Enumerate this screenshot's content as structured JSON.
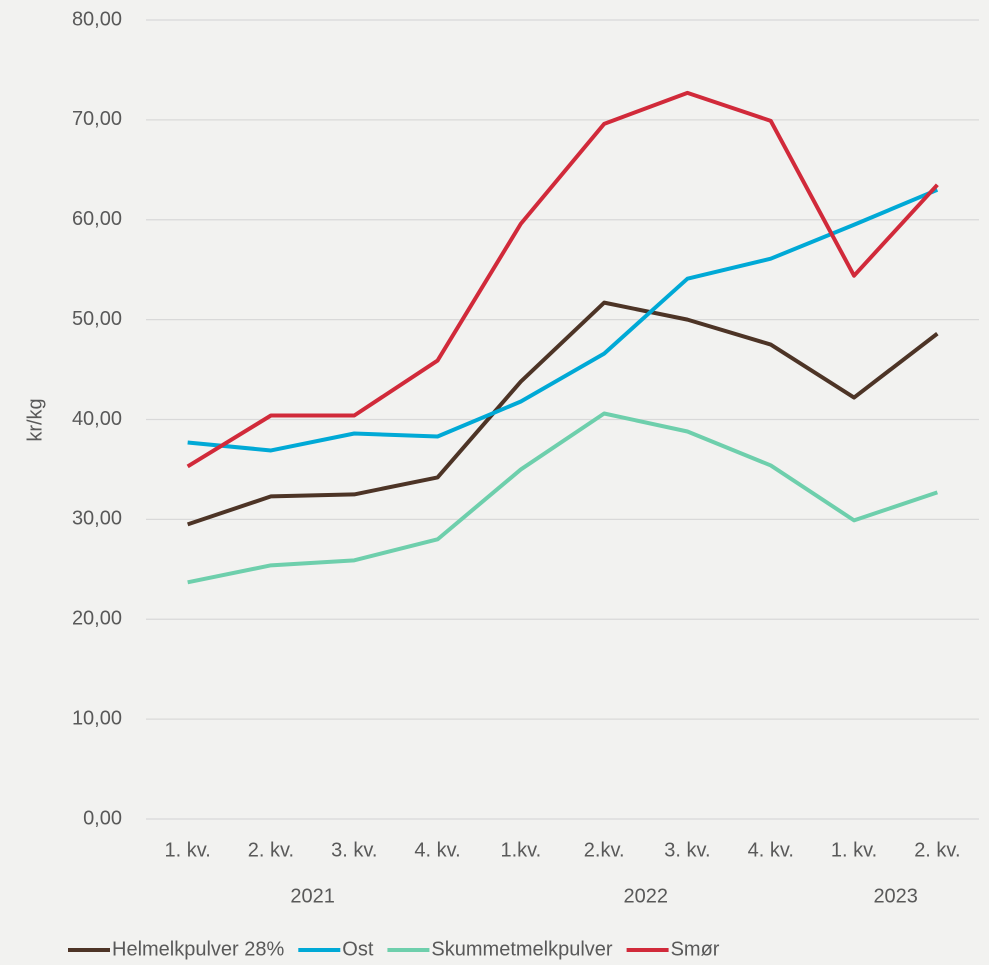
{
  "chart_data": {
    "type": "line",
    "y_label": "kr/kg",
    "categories": [
      "1. kv.",
      "2. kv.",
      "3. kv.",
      "4. kv.",
      "1.kv.",
      "2.kv.",
      "3. kv.",
      "4. kv.",
      "1. kv.",
      "2. kv."
    ],
    "x_groups": [
      {
        "label": "2021",
        "span": 4
      },
      {
        "label": "2022",
        "span": 4
      },
      {
        "label": "2023",
        "span": 2
      }
    ],
    "ylim": [
      0,
      80
    ],
    "yticks": [
      {
        "value": 0,
        "label": "0,00"
      },
      {
        "value": 10,
        "label": "10,00"
      },
      {
        "value": 20,
        "label": "20,00"
      },
      {
        "value": 30,
        "label": "30,00"
      },
      {
        "value": 40,
        "label": "40,00"
      },
      {
        "value": 50,
        "label": "50,00"
      },
      {
        "value": 60,
        "label": "60,00"
      },
      {
        "value": 70,
        "label": "70,00"
      },
      {
        "value": 80,
        "label": "80,00"
      }
    ],
    "grid": true,
    "legend": "bottom",
    "series": [
      {
        "name": "Helmelkpulver 28%",
        "color": "#4d3426",
        "values": [
          29.5,
          32.3,
          32.5,
          34.2,
          43.8,
          51.7,
          50.0,
          47.5,
          42.2,
          48.6
        ]
      },
      {
        "name": "Ost",
        "color": "#00a9d6",
        "values": [
          37.7,
          36.9,
          38.6,
          38.3,
          41.8,
          46.6,
          54.1,
          56.1,
          59.5,
          63.0
        ]
      },
      {
        "name": "Skummetmelkpulver",
        "color": "#6ecfac",
        "values": [
          23.7,
          25.4,
          25.9,
          28.0,
          35.0,
          40.6,
          38.8,
          35.4,
          29.9,
          32.7
        ]
      },
      {
        "name": "Smør",
        "color": "#d12a3a",
        "values": [
          35.3,
          40.4,
          40.4,
          45.9,
          59.6,
          69.6,
          72.7,
          69.9,
          54.4,
          63.5
        ]
      }
    ]
  }
}
